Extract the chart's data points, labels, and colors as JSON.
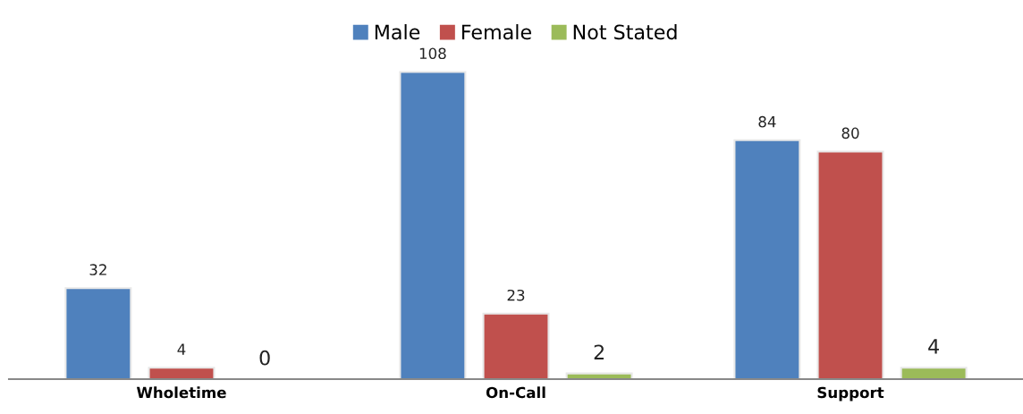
{
  "chart_data": {
    "type": "bar",
    "categories": [
      "Wholetime",
      "On-Call",
      "Support"
    ],
    "series": [
      {
        "name": "Male",
        "color": "#4f81bd",
        "values": [
          32,
          108,
          84
        ]
      },
      {
        "name": "Female",
        "color": "#c0504d",
        "values": [
          4,
          23,
          80
        ]
      },
      {
        "name": "Not Stated",
        "color": "#9bbb59",
        "values": [
          0,
          2,
          4
        ]
      }
    ],
    "data_labels": true,
    "legend": "top",
    "grid": false
  }
}
